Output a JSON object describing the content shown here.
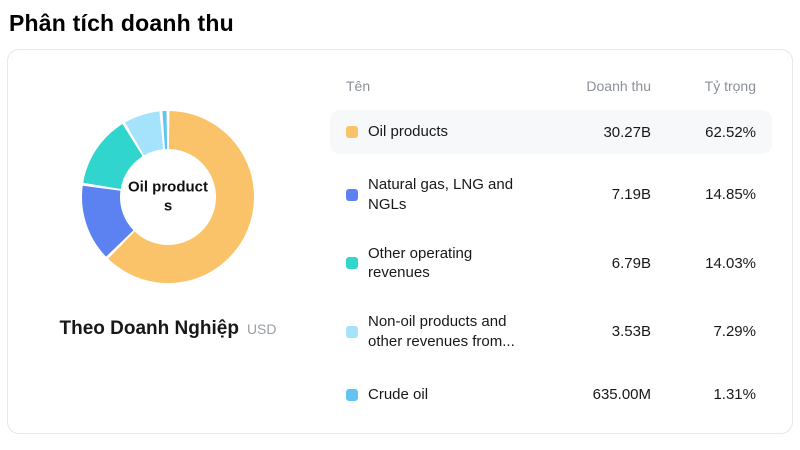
{
  "page": {
    "title": "Phân tích doanh thu"
  },
  "card": {
    "caption": "Theo Doanh Nghiệp",
    "currency": "USD",
    "table": {
      "headers": {
        "name": "Tên",
        "revenue": "Doanh thu",
        "weight": "Tỷ trọng"
      },
      "highlight_bg": "#f7f8f9"
    }
  },
  "chart_data": {
    "type": "pie",
    "title": "Phân tích doanh thu",
    "center_label": "Oil products",
    "donut": true,
    "legend_position": "right",
    "unit": "USD",
    "series": [
      {
        "name": "Oil products",
        "revenue": "30.27B",
        "value": 62.52,
        "pct_label": "62.52%",
        "color": "#FAC36A",
        "highlighted": true
      },
      {
        "name": "Natural gas, LNG and NGLs",
        "revenue": "7.19B",
        "value": 14.85,
        "pct_label": "14.85%",
        "color": "#5B82F0",
        "highlighted": false
      },
      {
        "name": "Other operating revenues",
        "revenue": "6.79B",
        "value": 14.03,
        "pct_label": "14.03%",
        "color": "#30D5CE",
        "highlighted": false
      },
      {
        "name": "Non-oil products and other revenues from...",
        "revenue": "3.53B",
        "value": 7.29,
        "pct_label": "7.29%",
        "color": "#A5E3FC",
        "highlighted": false
      },
      {
        "name": "Crude oil",
        "revenue": "635.00M",
        "value": 1.31,
        "pct_label": "1.31%",
        "color": "#62C4F2",
        "highlighted": false
      }
    ]
  }
}
